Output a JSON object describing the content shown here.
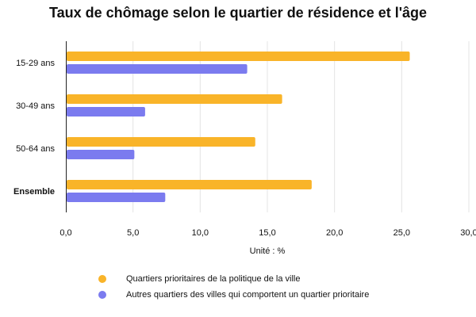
{
  "chart_data": {
    "type": "bar",
    "orientation": "horizontal",
    "title": "Taux de chômage selon le quartier de résidence et l'âge",
    "xlabel": "Unité : %",
    "ylabel": "",
    "categories": [
      "15-29 ans",
      "30-49 ans",
      "50-64 ans",
      "Ensemble"
    ],
    "bold_categories": [
      "Ensemble"
    ],
    "xlim": [
      0,
      30
    ],
    "xticks": [
      "0,0",
      "5,0",
      "10,0",
      "15,0",
      "20,0",
      "25,0",
      "30,0"
    ],
    "grid": true,
    "legend_position": "bottom",
    "series": [
      {
        "name": "Quartiers prioritaires de la politique de la ville",
        "color": "#F9B429",
        "values": [
          25.6,
          16.1,
          14.1,
          18.3
        ]
      },
      {
        "name": "Autres quartiers des villes qui comportent un quartier prioritaire",
        "color": "#7B7BEF",
        "values": [
          13.5,
          5.9,
          5.1,
          7.4
        ]
      }
    ]
  }
}
